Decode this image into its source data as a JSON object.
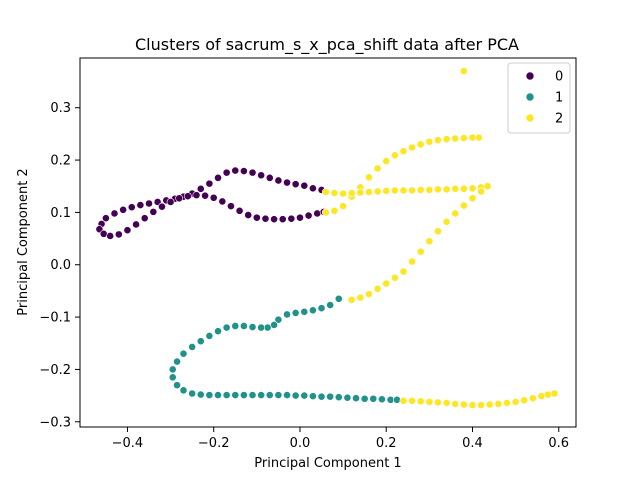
{
  "chart_data": {
    "type": "scatter",
    "title": "Clusters of sacrum_s_x_pca_shift data after PCA",
    "xlabel": "Principal Component 1",
    "ylabel": "Principal Component 2",
    "xlim": [
      -0.51,
      0.64
    ],
    "ylim": [
      -0.31,
      0.395
    ],
    "xticks": [
      -0.4,
      -0.2,
      0.0,
      0.2,
      0.4,
      0.6
    ],
    "xtick_labels": [
      "−0.4",
      "−0.2",
      "0.0",
      "0.2",
      "0.4",
      "0.6"
    ],
    "yticks": [
      -0.3,
      -0.2,
      -0.1,
      0.0,
      0.1,
      0.2,
      0.3
    ],
    "yticks_labels": [
      "−0.3",
      "−0.2",
      "−0.1",
      "0.0",
      "0.1",
      "0.2",
      "0.3"
    ],
    "grid": false,
    "legend_position": "top-right",
    "series": [
      {
        "name": "0",
        "color": "#440154",
        "points": [
          [
            0.05,
            0.143
          ],
          [
            0.03,
            0.146
          ],
          [
            0.01,
            0.151
          ],
          [
            -0.01,
            0.154
          ],
          [
            -0.03,
            0.157
          ],
          [
            -0.05,
            0.161
          ],
          [
            -0.07,
            0.166
          ],
          [
            -0.09,
            0.171
          ],
          [
            -0.11,
            0.176
          ],
          [
            -0.13,
            0.179
          ],
          [
            -0.15,
            0.18
          ],
          [
            -0.17,
            0.176
          ],
          [
            -0.19,
            0.166
          ],
          [
            -0.21,
            0.155
          ],
          [
            -0.23,
            0.145
          ],
          [
            -0.25,
            0.136
          ],
          [
            -0.27,
            0.13
          ],
          [
            -0.29,
            0.126
          ],
          [
            -0.31,
            0.123
          ],
          [
            -0.33,
            0.12
          ],
          [
            -0.35,
            0.117
          ],
          [
            -0.37,
            0.114
          ],
          [
            -0.39,
            0.11
          ],
          [
            -0.41,
            0.105
          ],
          [
            -0.43,
            0.098
          ],
          [
            -0.45,
            0.089
          ],
          [
            -0.46,
            0.078
          ],
          [
            -0.465,
            0.068
          ],
          [
            -0.455,
            0.059
          ],
          [
            -0.44,
            0.055
          ],
          [
            -0.42,
            0.058
          ],
          [
            -0.4,
            0.066
          ],
          [
            -0.38,
            0.077
          ],
          [
            -0.36,
            0.089
          ],
          [
            -0.34,
            0.101
          ],
          [
            -0.32,
            0.111
          ],
          [
            -0.3,
            0.12
          ],
          [
            -0.28,
            0.127
          ],
          [
            -0.26,
            0.131
          ],
          [
            -0.24,
            0.133
          ],
          [
            -0.22,
            0.132
          ],
          [
            -0.2,
            0.128
          ],
          [
            -0.18,
            0.121
          ],
          [
            -0.16,
            0.112
          ],
          [
            -0.14,
            0.103
          ],
          [
            -0.12,
            0.095
          ],
          [
            -0.1,
            0.09
          ],
          [
            -0.08,
            0.088
          ],
          [
            -0.06,
            0.087
          ],
          [
            -0.04,
            0.087
          ],
          [
            -0.02,
            0.088
          ],
          [
            0.0,
            0.09
          ],
          [
            0.02,
            0.094
          ],
          [
            0.04,
            0.098
          ],
          [
            0.055,
            0.101
          ]
        ]
      },
      {
        "name": "1",
        "color": "#21918c",
        "points": [
          [
            0.09,
            -0.065
          ],
          [
            0.07,
            -0.077
          ],
          [
            0.05,
            -0.083
          ],
          [
            0.03,
            -0.087
          ],
          [
            0.01,
            -0.09
          ],
          [
            -0.01,
            -0.092
          ],
          [
            -0.03,
            -0.095
          ],
          [
            -0.05,
            -0.105
          ],
          [
            -0.06,
            -0.115
          ],
          [
            -0.075,
            -0.12
          ],
          [
            -0.09,
            -0.12
          ],
          [
            -0.11,
            -0.119
          ],
          [
            -0.13,
            -0.117
          ],
          [
            -0.15,
            -0.117
          ],
          [
            -0.17,
            -0.12
          ],
          [
            -0.19,
            -0.127
          ],
          [
            -0.21,
            -0.136
          ],
          [
            -0.23,
            -0.146
          ],
          [
            -0.25,
            -0.157
          ],
          [
            -0.27,
            -0.17
          ],
          [
            -0.285,
            -0.185
          ],
          [
            -0.295,
            -0.2
          ],
          [
            -0.295,
            -0.215
          ],
          [
            -0.285,
            -0.23
          ],
          [
            -0.27,
            -0.24
          ],
          [
            -0.25,
            -0.246
          ],
          [
            -0.23,
            -0.248
          ],
          [
            -0.21,
            -0.249
          ],
          [
            -0.19,
            -0.249
          ],
          [
            -0.17,
            -0.249
          ],
          [
            -0.15,
            -0.249
          ],
          [
            -0.13,
            -0.249
          ],
          [
            -0.11,
            -0.249
          ],
          [
            -0.09,
            -0.249
          ],
          [
            -0.07,
            -0.249
          ],
          [
            -0.05,
            -0.249
          ],
          [
            -0.03,
            -0.249
          ],
          [
            -0.01,
            -0.25
          ],
          [
            0.01,
            -0.25
          ],
          [
            0.03,
            -0.251
          ],
          [
            0.05,
            -0.252
          ],
          [
            0.07,
            -0.252
          ],
          [
            0.09,
            -0.253
          ],
          [
            0.11,
            -0.254
          ],
          [
            0.13,
            -0.255
          ],
          [
            0.15,
            -0.256
          ],
          [
            0.17,
            -0.256
          ],
          [
            0.19,
            -0.257
          ],
          [
            0.21,
            -0.258
          ],
          [
            0.225,
            -0.258
          ]
        ]
      },
      {
        "name": "2",
        "color": "#fde725",
        "points": [
          [
            0.38,
            0.37
          ],
          [
            0.06,
            0.1
          ],
          [
            0.08,
            0.103
          ],
          [
            0.1,
            0.112
          ],
          [
            0.12,
            0.13
          ],
          [
            0.14,
            0.148
          ],
          [
            0.16,
            0.167
          ],
          [
            0.18,
            0.184
          ],
          [
            0.2,
            0.198
          ],
          [
            0.22,
            0.209
          ],
          [
            0.24,
            0.217
          ],
          [
            0.26,
            0.224
          ],
          [
            0.28,
            0.23
          ],
          [
            0.3,
            0.235
          ],
          [
            0.32,
            0.238
          ],
          [
            0.34,
            0.24
          ],
          [
            0.36,
            0.241
          ],
          [
            0.38,
            0.242
          ],
          [
            0.4,
            0.243
          ],
          [
            0.415,
            0.243
          ],
          [
            0.06,
            0.139
          ],
          [
            0.08,
            0.137
          ],
          [
            0.1,
            0.136
          ],
          [
            0.12,
            0.137
          ],
          [
            0.14,
            0.138
          ],
          [
            0.16,
            0.139
          ],
          [
            0.18,
            0.14
          ],
          [
            0.2,
            0.141
          ],
          [
            0.22,
            0.142
          ],
          [
            0.24,
            0.142
          ],
          [
            0.26,
            0.142
          ],
          [
            0.28,
            0.143
          ],
          [
            0.3,
            0.143
          ],
          [
            0.32,
            0.144
          ],
          [
            0.34,
            0.144
          ],
          [
            0.36,
            0.145
          ],
          [
            0.38,
            0.145
          ],
          [
            0.4,
            0.146
          ],
          [
            0.42,
            0.148
          ],
          [
            0.435,
            0.15
          ],
          [
            0.42,
            0.14
          ],
          [
            0.4,
            0.127
          ],
          [
            0.38,
            0.113
          ],
          [
            0.36,
            0.098
          ],
          [
            0.34,
            0.082
          ],
          [
            0.32,
            0.064
          ],
          [
            0.3,
            0.045
          ],
          [
            0.28,
            0.025
          ],
          [
            0.26,
            0.006
          ],
          [
            0.24,
            -0.013
          ],
          [
            0.22,
            -0.025
          ],
          [
            0.2,
            -0.036
          ],
          [
            0.18,
            -0.046
          ],
          [
            0.16,
            -0.056
          ],
          [
            0.14,
            -0.063
          ],
          [
            0.12,
            -0.067
          ],
          [
            0.24,
            -0.26
          ],
          [
            0.26,
            -0.26
          ],
          [
            0.28,
            -0.261
          ],
          [
            0.3,
            -0.262
          ],
          [
            0.32,
            -0.263
          ],
          [
            0.34,
            -0.264
          ],
          [
            0.36,
            -0.266
          ],
          [
            0.38,
            -0.267
          ],
          [
            0.4,
            -0.268
          ],
          [
            0.42,
            -0.268
          ],
          [
            0.44,
            -0.267
          ],
          [
            0.46,
            -0.266
          ],
          [
            0.48,
            -0.264
          ],
          [
            0.5,
            -0.262
          ],
          [
            0.52,
            -0.259
          ],
          [
            0.54,
            -0.255
          ],
          [
            0.56,
            -0.251
          ],
          [
            0.575,
            -0.248
          ],
          [
            0.59,
            -0.246
          ]
        ]
      }
    ]
  }
}
